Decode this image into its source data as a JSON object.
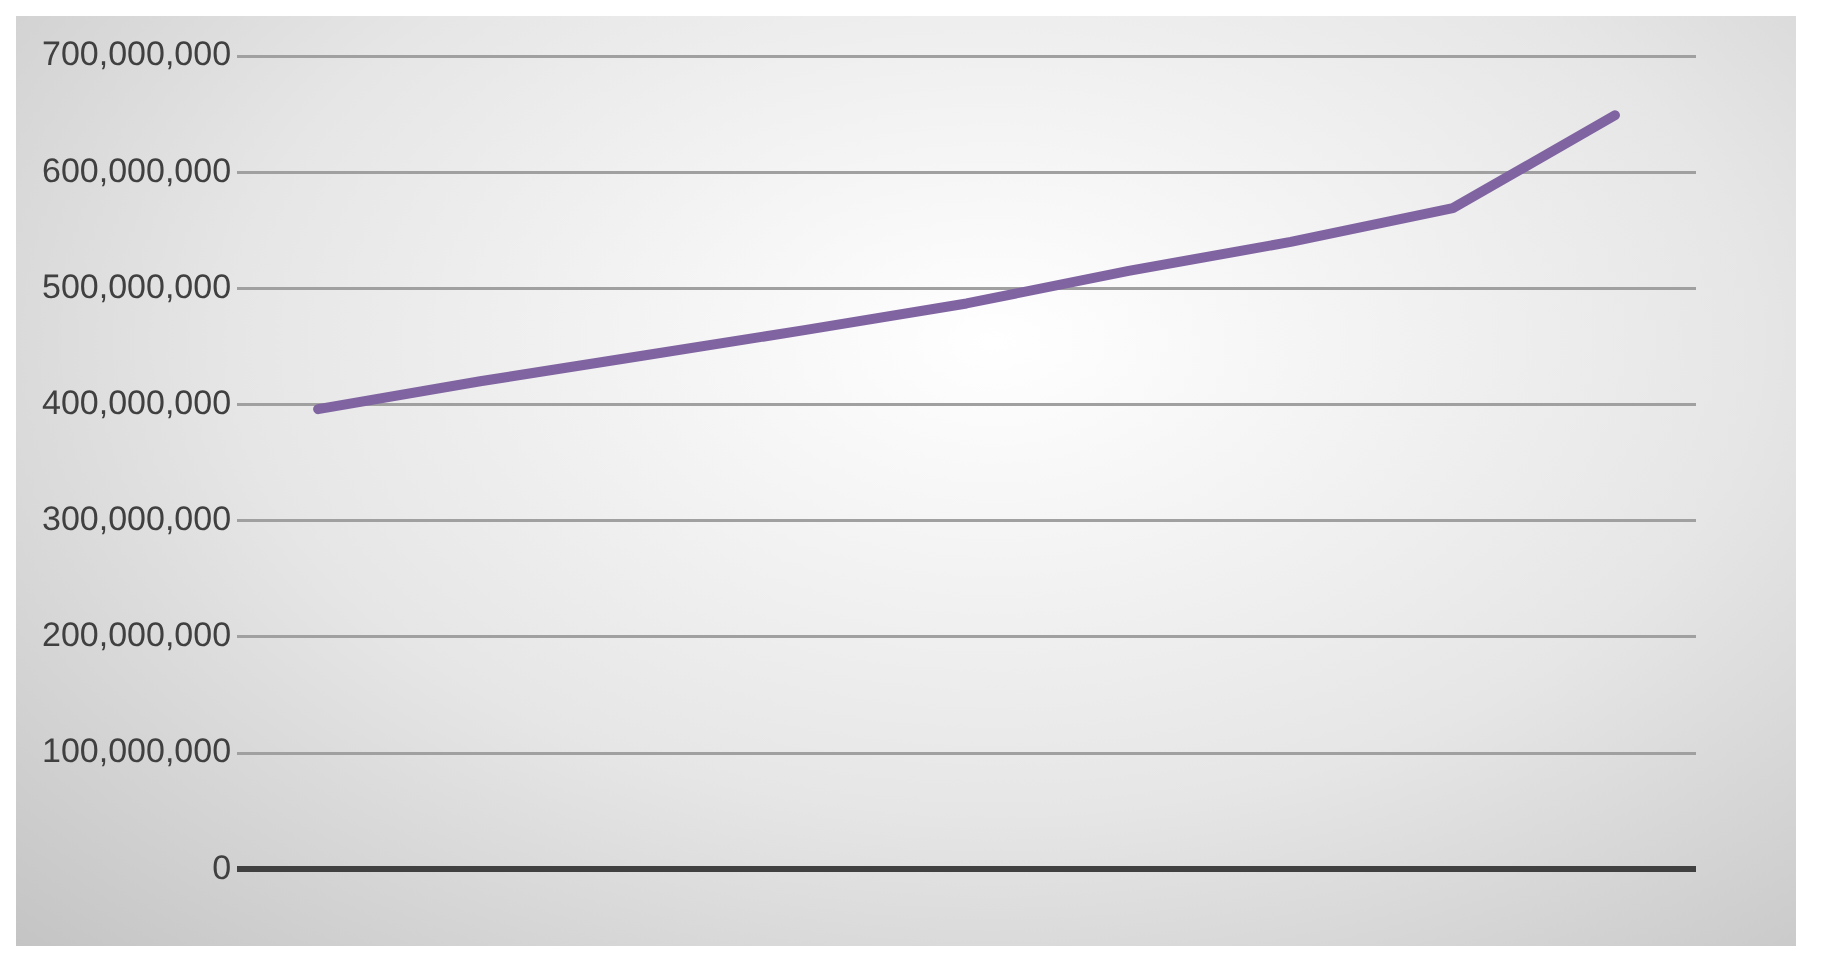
{
  "chart_data": {
    "type": "line",
    "categories": [
      null,
      null,
      null,
      null,
      null,
      null,
      null,
      null,
      null
    ],
    "series": [
      {
        "color": "#8064a2",
        "values": [
          396000000,
          420000000,
          442000000,
          464000000,
          487000000,
          515000000,
          540000000,
          569000000,
          649000000
        ]
      }
    ],
    "ylim": [
      0,
      700000000
    ],
    "yticks": [
      {
        "value": 0,
        "label": "0"
      },
      {
        "value": 100000000,
        "label": "100,000,000"
      },
      {
        "value": 200000000,
        "label": "200,000,000"
      },
      {
        "value": 300000000,
        "label": "300,000,000"
      },
      {
        "value": 400000000,
        "label": "400,000,000"
      },
      {
        "value": 500000000,
        "label": "500,000,000"
      },
      {
        "value": 600000000,
        "label": "600,000,000"
      },
      {
        "value": 700000000,
        "label": "700,000,000"
      }
    ],
    "grid": "y",
    "legend": false,
    "marker": "none",
    "line_style": "solid"
  }
}
